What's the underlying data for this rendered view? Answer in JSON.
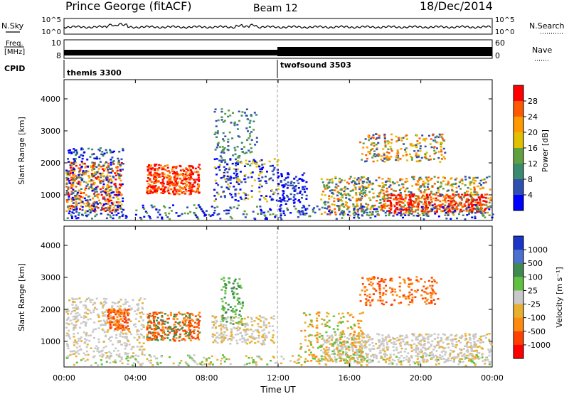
{
  "header": {
    "station": "Prince George (fitACF)",
    "beam": "Beam 12",
    "date": "18/Dec/2014"
  },
  "chart_data": [
    {
      "type": "line",
      "panel": "noise",
      "left_label": "N.Sky",
      "right_label": "N.Search",
      "left_ticks": [
        "10^5",
        "10^0"
      ],
      "right_ticks": [
        "10^5",
        "10^0"
      ]
    },
    {
      "type": "line",
      "panel": "frequency",
      "left_label_line1": "Freq.",
      "left_label_line2": "[MHz]",
      "right_label": "Nave",
      "left_ticks": [
        "10",
        "8"
      ],
      "right_ticks": [
        "60",
        "0"
      ]
    },
    {
      "type": "table",
      "panel": "cpid",
      "label": "CPID",
      "segments": [
        {
          "name": "themis 3300",
          "start_hour": 0,
          "end_hour": 12
        },
        {
          "name": "twofsound 3503",
          "start_hour": 12,
          "end_hour": 24
        }
      ]
    },
    {
      "type": "heatmap",
      "panel": "power",
      "ylabel": "Slant Range [km]",
      "yticks": [
        "1000",
        "2000",
        "3000",
        "4000"
      ],
      "ylim": [
        200,
        4600
      ],
      "colorbar_label": "Power [dB]",
      "colorbar_ticks": [
        "28",
        "24",
        "20",
        "16",
        "12",
        "8",
        "4"
      ],
      "colorbar_colors": [
        "#ff0000",
        "#ff5a00",
        "#ff9900",
        "#e0c000",
        "#5fa040",
        "#3a8a70",
        "#3050b0",
        "#0000ff"
      ]
    },
    {
      "type": "heatmap",
      "panel": "velocity",
      "ylabel": "Slant Range [km]",
      "yticks": [
        "1000",
        "2000",
        "3000",
        "4000"
      ],
      "ylim": [
        200,
        4600
      ],
      "colorbar_label": "Velocity [m s⁻¹]",
      "colorbar_ticks": [
        "1000",
        "500",
        "100",
        "25",
        "-25",
        "-100",
        "-500",
        "-1000"
      ],
      "colorbar_colors": [
        "#1a35c8",
        "#4a70d0",
        "#3f8a50",
        "#60c040",
        "#c8c8c8",
        "#e8b030",
        "#ff8a10",
        "#ff4000",
        "#ff0000"
      ]
    }
  ],
  "xaxis": {
    "label": "Time UT",
    "ticks": [
      "00:00",
      "04:00",
      "08:00",
      "12:00",
      "16:00",
      "20:00",
      "00:00"
    ]
  }
}
